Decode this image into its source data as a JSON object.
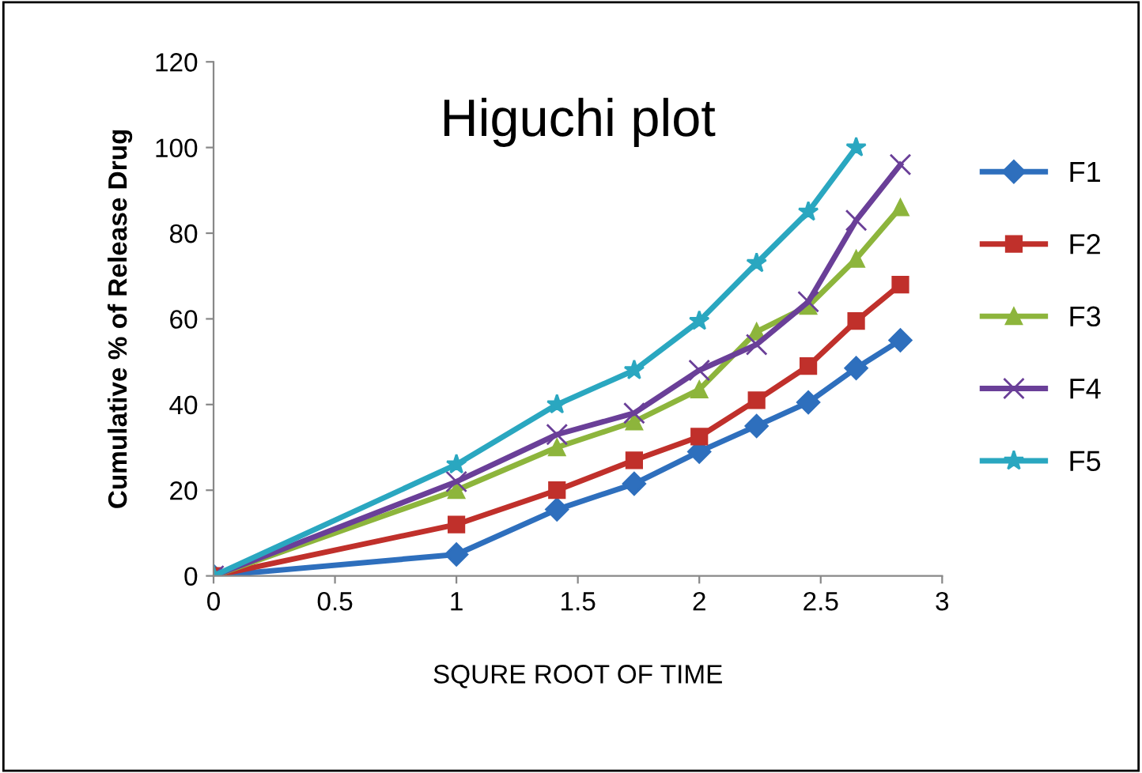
{
  "chart_data": {
    "type": "line",
    "title": "Higuchi plot",
    "xlabel": "SQURE ROOT OF TIME",
    "ylabel": "Cumulative % of Release Drug",
    "x": [
      0,
      1,
      1.414,
      1.732,
      2,
      2.236,
      2.449,
      2.646,
      2.828
    ],
    "xlim": [
      0,
      3
    ],
    "xticks": [
      0,
      0.5,
      1,
      1.5,
      2,
      2.5,
      3
    ],
    "ylim": [
      0,
      120
    ],
    "yticks": [
      0,
      20,
      40,
      60,
      80,
      100,
      120
    ],
    "grid": false,
    "legend": "right",
    "line_style": "solid",
    "series": [
      {
        "name": "F1",
        "color": "#2e6fbd",
        "marker": "diamond",
        "values": [
          0,
          5,
          15.5,
          21.5,
          29,
          35,
          40.5,
          48.5,
          55
        ]
      },
      {
        "name": "F2",
        "color": "#c0302b",
        "marker": "square",
        "values": [
          0,
          12,
          20,
          27,
          32.5,
          41,
          49,
          59.5,
          68
        ]
      },
      {
        "name": "F3",
        "color": "#8db53c",
        "marker": "triangle",
        "values": [
          0,
          20,
          30,
          36,
          43.5,
          57,
          63,
          74,
          86
        ]
      },
      {
        "name": "F4",
        "color": "#6a3f98",
        "marker": "cross",
        "values": [
          0,
          22,
          33,
          38,
          48,
          54,
          64,
          83,
          96
        ]
      },
      {
        "name": "F5",
        "color": "#2aa7c0",
        "marker": "star",
        "x": [
          0,
          1,
          1.414,
          1.732,
          2,
          2.236,
          2.449,
          2.646
        ],
        "values": [
          0,
          26,
          40,
          48,
          59.5,
          73,
          85,
          100
        ]
      }
    ]
  }
}
